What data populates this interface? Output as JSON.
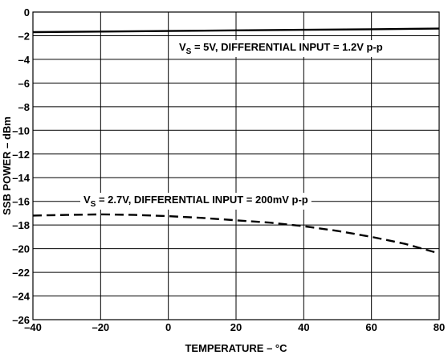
{
  "chart_data": {
    "type": "line",
    "xlabel": "TEMPERATURE – °C",
    "ylabel": "SSB POWER – dBm",
    "xlim": [
      -40,
      80
    ],
    "ylim": [
      -26,
      0
    ],
    "x_ticks": [
      -40,
      -20,
      0,
      20,
      40,
      60,
      80
    ],
    "y_ticks": [
      0,
      -2,
      -4,
      -6,
      -8,
      -10,
      -12,
      -14,
      -16,
      -18,
      -20,
      -22,
      -24,
      -26
    ],
    "x_tick_labels": [
      "–40",
      "–20",
      "0",
      "20",
      "40",
      "60",
      "80"
    ],
    "y_tick_labels": [
      "0",
      "–2",
      "–4",
      "–6",
      "–8",
      "–10",
      "–12",
      "–14",
      "–16",
      "–18",
      "–20",
      "–22",
      "–24",
      "–26"
    ],
    "grid": true,
    "series": [
      {
        "style": "solid",
        "x": [
          -40,
          -20,
          0,
          20,
          40,
          60,
          80
        ],
        "y": [
          -1.7,
          -1.65,
          -1.6,
          -1.55,
          -1.5,
          -1.45,
          -1.4
        ]
      },
      {
        "style": "dashed",
        "x": [
          -40,
          -30,
          -20,
          -10,
          0,
          10,
          20,
          30,
          40,
          50,
          60,
          70,
          80
        ],
        "y": [
          -17.2,
          -17.15,
          -17.1,
          -17.15,
          -17.25,
          -17.4,
          -17.6,
          -17.8,
          -18.1,
          -18.5,
          -19.0,
          -19.6,
          -20.4
        ]
      }
    ],
    "annotations": [
      {
        "prefix": "V",
        "sub": "S",
        "text": " = 5V, DIFFERENTIAL INPUT = 1.2V p-p"
      },
      {
        "prefix": "V",
        "sub": "S",
        "text": " = 2.7V, DIFFERENTIAL INPUT = 200mV p-p"
      }
    ]
  }
}
